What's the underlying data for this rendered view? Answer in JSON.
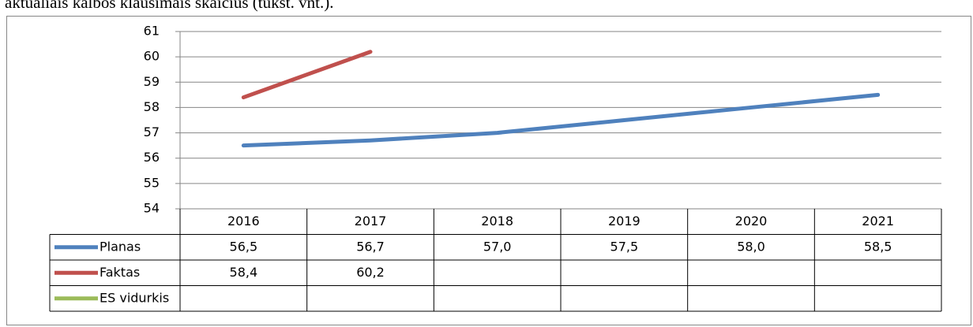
{
  "caption": "aktualiais kalbos klausimais skaičius (tūkst. vnt.).",
  "chart_data": {
    "type": "line",
    "categories": [
      "2016",
      "2017",
      "2018",
      "2019",
      "2020",
      "2021"
    ],
    "series": [
      {
        "name": "Planas",
        "color": "#4f81bd",
        "values": [
          56.5,
          56.7,
          57.0,
          57.5,
          58.0,
          58.5
        ],
        "value_labels": [
          "56,5",
          "56,7",
          "57,0",
          "57,5",
          "58,0",
          "58,5"
        ]
      },
      {
        "name": "Faktas",
        "color": "#c0504d",
        "values": [
          58.4,
          60.2,
          null,
          null,
          null,
          null
        ],
        "value_labels": [
          "58,4",
          "60,2",
          null,
          null,
          null,
          null
        ]
      },
      {
        "name": "ES vidurkis",
        "color": "#9bbb59",
        "values": [
          null,
          null,
          null,
          null,
          null,
          null
        ],
        "value_labels": [
          null,
          null,
          null,
          null,
          null,
          null
        ]
      }
    ],
    "ylim": [
      54,
      61
    ],
    "yticks": [
      54,
      55,
      56,
      57,
      58,
      59,
      60,
      61
    ],
    "grid": true
  }
}
